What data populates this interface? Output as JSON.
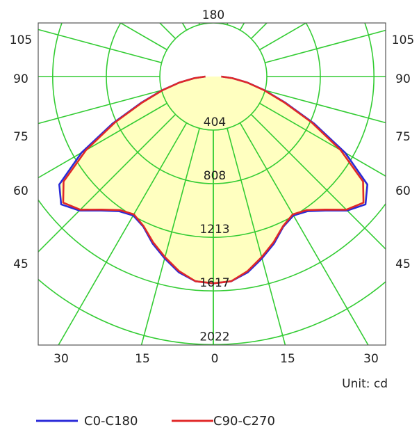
{
  "chart_data": {
    "type": "polar",
    "unit_label": "Unit: cd",
    "top_label": "180",
    "angle_labels": [
      "105",
      "90",
      "75",
      "60",
      "45"
    ],
    "bottom_ticks": [
      "30",
      "15",
      "0",
      "15",
      "30"
    ],
    "radial_ticks": [
      "404",
      "808",
      "1213",
      "1617",
      "2022"
    ],
    "grid": true,
    "legend_position": "bottom",
    "colors": {
      "grid": "#33cc33",
      "fill": "#ffffc0",
      "c0": "#2a2ad8",
      "c90": "#e02828"
    },
    "series": [
      {
        "name": "C0-C180",
        "color": "#2a2ad8",
        "angles": [
          0,
          5,
          10,
          15,
          20,
          25,
          30,
          35,
          40,
          45,
          50,
          55,
          60,
          65,
          70,
          75,
          80,
          85,
          90
        ],
        "values": [
          1560,
          1550,
          1500,
          1420,
          1340,
          1250,
          1210,
          1240,
          1320,
          1430,
          1500,
          1420,
          1150,
          840,
          580,
          400,
          260,
          145,
          60
        ]
      },
      {
        "name": "C90-C270",
        "color": "#e02828",
        "angles": [
          0,
          5,
          10,
          15,
          20,
          25,
          30,
          35,
          40,
          45,
          50,
          55,
          60,
          65,
          70,
          75,
          80,
          85,
          90
        ],
        "values": [
          1560,
          1550,
          1490,
          1410,
          1330,
          1245,
          1200,
          1230,
          1310,
          1420,
          1480,
          1380,
          1110,
          820,
          570,
          395,
          258,
          144,
          60
        ]
      }
    ]
  }
}
